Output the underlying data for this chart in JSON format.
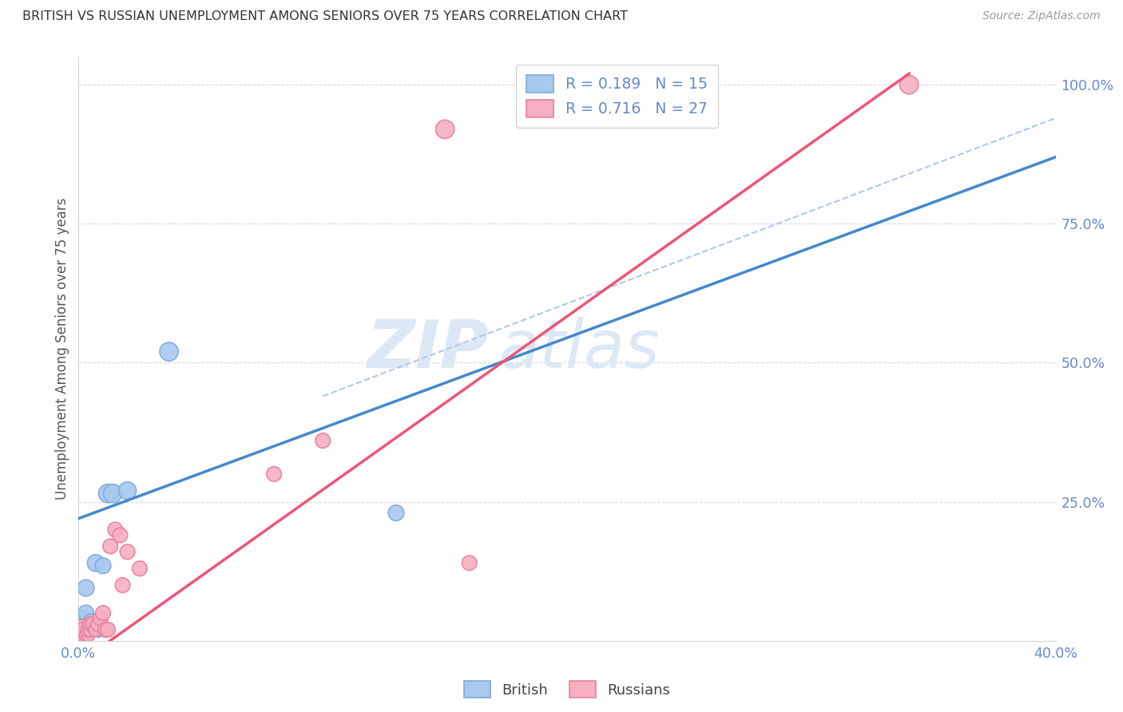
{
  "title": "BRITISH VS RUSSIAN UNEMPLOYMENT AMONG SENIORS OVER 75 YEARS CORRELATION CHART",
  "source": "Source: ZipAtlas.com",
  "ylabel": "Unemployment Among Seniors over 75 years",
  "xlabel": "",
  "xlim": [
    0.0,
    0.4
  ],
  "ylim": [
    0.0,
    1.05
  ],
  "xticks": [
    0.0,
    0.05,
    0.1,
    0.15,
    0.2,
    0.25,
    0.3,
    0.35,
    0.4
  ],
  "xticklabels": [
    "0.0%",
    "",
    "",
    "",
    "",
    "",
    "",
    "",
    "40.0%"
  ],
  "ytick_positions": [
    0.25,
    0.5,
    0.75,
    1.0
  ],
  "ytick_labels": [
    "25.0%",
    "50.0%",
    "75.0%",
    "100.0%"
  ],
  "british_R": 0.189,
  "british_N": 15,
  "russian_R": 0.716,
  "russian_N": 27,
  "british_color": "#a8c8f0",
  "russian_color": "#f5afc0",
  "british_color_dark": "#7aaad8",
  "russian_color_dark": "#e8809a",
  "trend_british_color": "#4488cc",
  "trend_russian_color": "#ee5577",
  "diagonal_color": "#b0c8e8",
  "watermark_color": "#dce8f5",
  "title_color": "#333333",
  "axis_label_color": "#555555",
  "axis_color": "#6688cc",
  "grid_color": "#d8d8d8",
  "british_line": [
    0.0,
    0.22,
    0.4,
    0.87
  ],
  "russian_line": [
    0.0,
    -0.04,
    0.34,
    1.02
  ],
  "diagonal_line": [
    0.1,
    0.44,
    0.4,
    0.94
  ],
  "british_scatter": [
    [
      0.001,
      0.015
    ],
    [
      0.002,
      0.04
    ],
    [
      0.003,
      0.05
    ],
    [
      0.005,
      0.035
    ],
    [
      0.007,
      0.14
    ],
    [
      0.009,
      0.025
    ],
    [
      0.01,
      0.135
    ],
    [
      0.012,
      0.265
    ],
    [
      0.014,
      0.265
    ],
    [
      0.02,
      0.27
    ],
    [
      0.037,
      0.52
    ],
    [
      0.13,
      0.23
    ],
    [
      0.003,
      0.095
    ],
    [
      0.008,
      0.02
    ],
    [
      0.005,
      0.02
    ]
  ],
  "russian_scatter": [
    [
      0.001,
      0.01
    ],
    [
      0.001,
      0.02
    ],
    [
      0.002,
      0.01
    ],
    [
      0.002,
      0.02
    ],
    [
      0.003,
      0.01
    ],
    [
      0.004,
      0.01
    ],
    [
      0.004,
      0.02
    ],
    [
      0.005,
      0.02
    ],
    [
      0.005,
      0.03
    ],
    [
      0.006,
      0.03
    ],
    [
      0.007,
      0.02
    ],
    [
      0.008,
      0.03
    ],
    [
      0.009,
      0.04
    ],
    [
      0.01,
      0.05
    ],
    [
      0.011,
      0.02
    ],
    [
      0.012,
      0.02
    ],
    [
      0.013,
      0.17
    ],
    [
      0.015,
      0.2
    ],
    [
      0.017,
      0.19
    ],
    [
      0.018,
      0.1
    ],
    [
      0.02,
      0.16
    ],
    [
      0.025,
      0.13
    ],
    [
      0.08,
      0.3
    ],
    [
      0.1,
      0.36
    ],
    [
      0.15,
      0.92
    ],
    [
      0.16,
      0.14
    ],
    [
      0.34,
      1.0
    ]
  ],
  "british_scatter_sizes": [
    250,
    200,
    200,
    180,
    230,
    180,
    200,
    280,
    280,
    250,
    280,
    200,
    220,
    180,
    160
  ],
  "russian_scatter_sizes": [
    380,
    340,
    180,
    180,
    140,
    140,
    180,
    180,
    180,
    180,
    160,
    180,
    180,
    180,
    180,
    180,
    180,
    180,
    180,
    180,
    180,
    180,
    180,
    180,
    280,
    180,
    280
  ]
}
